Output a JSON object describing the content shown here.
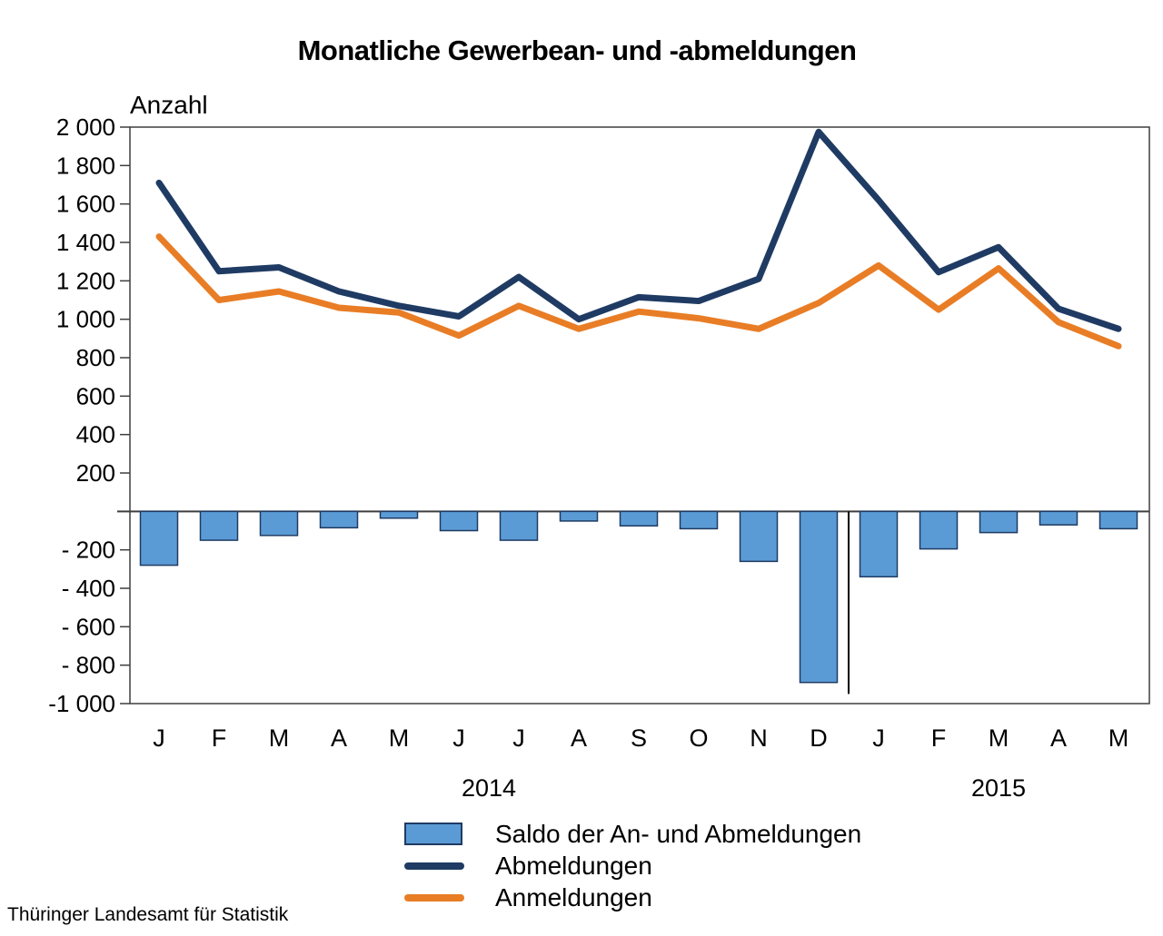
{
  "title": "Monatliche Gewerbean- und -abmeldungen",
  "y_axis_label": "Anzahl",
  "source": "Thüringer Landesamt für Statistik",
  "chart_data": {
    "type": "combo",
    "title": "Monatliche Gewerbean- und -abmeldungen",
    "ylabel": "Anzahl",
    "categories": [
      "J",
      "F",
      "M",
      "A",
      "M",
      "J",
      "J",
      "A",
      "S",
      "O",
      "N",
      "D",
      "J",
      "F",
      "M",
      "A",
      "M"
    ],
    "year_groups": [
      {
        "label": "2014",
        "from": 0,
        "to": 11
      },
      {
        "label": "2015",
        "from": 12,
        "to": 16
      }
    ],
    "ylim": [
      -1000,
      2000
    ],
    "ytick_step": 200,
    "ytick_labels": [
      "2 000",
      "1 800",
      "1 600",
      "1 400",
      "1 200",
      "1 000",
      "800",
      "600",
      "400",
      "200",
      "- 200",
      "- 400",
      "- 600",
      "- 800",
      "-1 000"
    ],
    "grid": false,
    "legend_position": "bottom",
    "axis_color": "#3f3f3f",
    "text_color": "#000000",
    "year_separator": {
      "after_index": 11,
      "from_value": 0,
      "to_value": -950
    },
    "series": [
      {
        "name": "Saldo der An- und Abmeldungen",
        "type": "bar",
        "color": "#5b9bd5",
        "border_color": "#1f3b63",
        "values": [
          -280,
          -150,
          -125,
          -85,
          -35,
          -100,
          -150,
          -50,
          -75,
          -90,
          -260,
          -890,
          -340,
          -195,
          -110,
          -70,
          -90
        ]
      },
      {
        "name": "Abmeldungen",
        "type": "line",
        "color": "#1f3b63",
        "values": [
          1710,
          1250,
          1270,
          1145,
          1070,
          1015,
          1220,
          1000,
          1115,
          1095,
          1210,
          1975,
          1620,
          1245,
          1375,
          1055,
          950
        ]
      },
      {
        "name": "Anmeldungen",
        "type": "line",
        "color": "#e87d26",
        "values": [
          1430,
          1100,
          1145,
          1060,
          1035,
          915,
          1070,
          950,
          1040,
          1005,
          950,
          1085,
          1280,
          1050,
          1265,
          985,
          860
        ]
      }
    ]
  }
}
